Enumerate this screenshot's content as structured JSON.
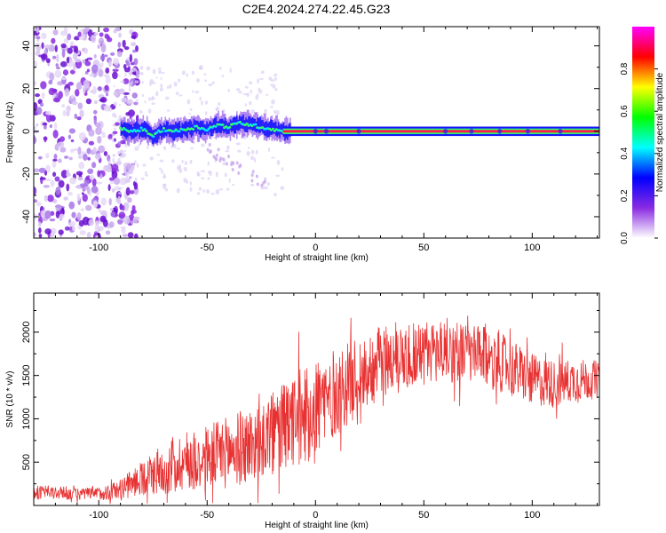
{
  "figure": {
    "title": "C2E4.2024.274.22.45.G23"
  },
  "chart_data": [
    {
      "type": "heatmap",
      "xlabel": "Height of straight line (km)",
      "ylabel": "Frequency (Hz)",
      "xlim": [
        -130,
        131
      ],
      "ylim": [
        -50,
        49
      ],
      "x_ticks": [
        -100,
        -50,
        0,
        50,
        100
      ],
      "x_tick_labels": [
        "-100",
        "-50",
        "0",
        "50",
        "100"
      ],
      "y_ticks": [
        -40,
        -20,
        0,
        20,
        40
      ],
      "y_tick_labels": [
        "-40",
        "-20",
        "0",
        "20",
        "40"
      ],
      "grid": false,
      "noise_region_x": [
        -130,
        -90
      ],
      "signal_track": [
        {
          "x": -90,
          "y": 1
        },
        {
          "x": -85,
          "y": 0
        },
        {
          "x": -80,
          "y": 1
        },
        {
          "x": -75,
          "y": -2
        },
        {
          "x": -70,
          "y": 1
        },
        {
          "x": -65,
          "y": 0
        },
        {
          "x": -60,
          "y": 1
        },
        {
          "x": -55,
          "y": 2
        },
        {
          "x": -50,
          "y": 1
        },
        {
          "x": -45,
          "y": 3
        },
        {
          "x": -40,
          "y": 2
        },
        {
          "x": -35,
          "y": 4
        },
        {
          "x": -30,
          "y": 3
        },
        {
          "x": -25,
          "y": 2
        },
        {
          "x": -20,
          "y": 1
        },
        {
          "x": -15,
          "y": 0
        },
        {
          "x": -10,
          "y": 0
        },
        {
          "x": 0,
          "y": 0
        },
        {
          "x": 131,
          "y": 0
        }
      ],
      "steady_line": {
        "x_start": -15,
        "x_end": 131,
        "y": 0
      },
      "colorbar": {
        "label": "Normalized spectral amplitude",
        "range": [
          0,
          1
        ],
        "ticks": [
          0.0,
          0.2,
          0.4,
          0.6,
          0.8
        ],
        "tick_labels": [
          "0.0",
          "0.2",
          "0.4",
          "0.6",
          "0.8"
        ],
        "colors": [
          "#ffffff",
          "#8a2be2",
          "#0000ff",
          "#00ffff",
          "#00ff00",
          "#ffff00",
          "#ff0000",
          "#ff00ff"
        ]
      }
    },
    {
      "type": "line",
      "xlabel": "Height of straight line (km)",
      "ylabel": "SNR (10 * v/v)",
      "xlim": [
        -130,
        131
      ],
      "ylim": [
        0,
        2450
      ],
      "x_ticks": [
        -100,
        -50,
        0,
        50,
        100
      ],
      "x_tick_labels": [
        "-100",
        "-50",
        "0",
        "50",
        "100"
      ],
      "y_ticks": [
        500,
        1000,
        1500,
        2000
      ],
      "y_tick_labels": [
        "500",
        "1000",
        "1500",
        "2000"
      ],
      "grid": false,
      "color": "#e83232",
      "envelope": {
        "x": [
          -130,
          -120,
          -110,
          -100,
          -90,
          -80,
          -70,
          -60,
          -50,
          -40,
          -30,
          -20,
          -10,
          0,
          10,
          20,
          30,
          40,
          50,
          60,
          70,
          80,
          90,
          100,
          110,
          120,
          131
        ],
        "center": [
          150,
          150,
          130,
          140,
          180,
          320,
          420,
          520,
          560,
          620,
          700,
          820,
          950,
          1150,
          1300,
          1500,
          1650,
          1750,
          1750,
          1800,
          1750,
          1700,
          1600,
          1450,
          1400,
          1450,
          1450
        ],
        "spread": [
          80,
          80,
          70,
          80,
          120,
          200,
          300,
          350,
          380,
          420,
          450,
          500,
          550,
          600,
          500,
          450,
          420,
          400,
          380,
          380,
          350,
          350,
          330,
          300,
          280,
          250,
          220
        ]
      }
    }
  ]
}
